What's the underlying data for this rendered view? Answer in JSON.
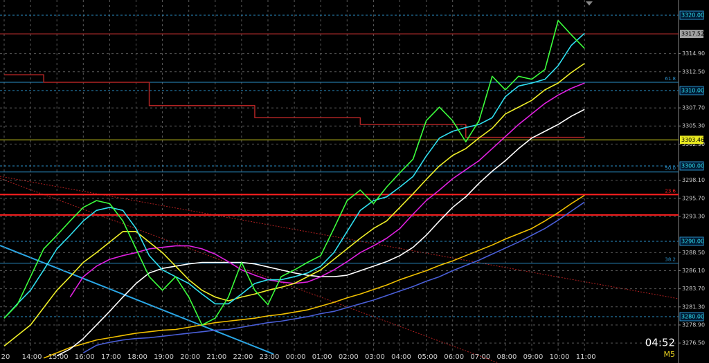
{
  "chart_data": {
    "type": "line",
    "categories": [
      "20",
      null,
      "14:00",
      null,
      "15:00",
      null,
      "16:00",
      null,
      "17:00",
      null,
      "18:00",
      null,
      "19:00",
      null,
      "20:00",
      null,
      "21:00",
      null,
      "22:00",
      null,
      "23:00",
      null,
      "00:00",
      null,
      "01:00",
      null,
      "02:00",
      null,
      "03:00",
      null,
      "04:00",
      null,
      "05:00",
      null,
      "06:00",
      null,
      "07:00",
      null,
      "08:00",
      null,
      "09:00",
      null,
      "10:00",
      null,
      "11:00"
    ],
    "ylim": [
      3273.85,
      3322.02
    ],
    "yticks": [
      {
        "value": 3314.9,
        "label": "3314.90"
      },
      {
        "value": 3312.5,
        "label": "3312.50"
      },
      {
        "value": 3307.7,
        "label": "3307.70"
      },
      {
        "value": 3305.3,
        "label": "3305.30"
      },
      {
        "value": 3302.9,
        "label": "3302.90"
      },
      {
        "value": 3298.1,
        "label": "3298.10"
      },
      {
        "value": 3295.7,
        "label": "3295.70"
      },
      {
        "value": 3293.3,
        "label": "3293.30"
      },
      {
        "value": 3288.5,
        "label": "3288.50"
      },
      {
        "value": 3286.1,
        "label": "3286.10"
      },
      {
        "value": 3283.7,
        "label": "3283.70"
      },
      {
        "value": 3281.3,
        "label": "3281.30"
      },
      {
        "value": 3278.9,
        "label": "3278.90"
      },
      {
        "value": 3276.5,
        "label": "3276.50"
      }
    ],
    "grid": true,
    "series": [
      {
        "color": "#b02424",
        "step": true,
        "values": [
          3312.1,
          3312.1,
          3312.1,
          3311.1,
          3311.1,
          3311.1,
          3311.1,
          3311.1,
          3311.1,
          3311.1,
          3311.1,
          3308.0,
          3308.0,
          3308.0,
          3308.0,
          3308.0,
          3308.0,
          3308.0,
          3308.0,
          3306.4,
          3306.4,
          3306.4,
          3306.4,
          3306.4,
          3306.4,
          3306.4,
          3306.4,
          3305.5,
          3305.5,
          3305.5,
          3305.5,
          3305.5,
          3305.5,
          3305.5,
          3305.5,
          3303.8,
          3303.8,
          3303.8,
          3303.8,
          3303.8,
          3303.8,
          3303.8,
          3303.8,
          3303.8,
          3303.8
        ]
      },
      {
        "color": "#f0c000",
        "values": [
          null,
          null,
          null,
          3274.5,
          3275.2,
          3275.9,
          3276.4,
          3276.9,
          3277.2,
          3277.5,
          3277.8,
          3278.0,
          3278.2,
          3278.3,
          3278.6,
          3278.9,
          3279.2,
          3279.4,
          3279.6,
          3279.8,
          3280.1,
          3280.3,
          3280.6,
          3280.9,
          3281.4,
          3281.9,
          3282.5,
          3283.0,
          3283.6,
          3284.2,
          3284.9,
          3285.5,
          3286.1,
          3286.8,
          3287.4,
          3288.1,
          3288.8,
          3289.5,
          3290.3,
          3291.0,
          3291.7,
          3292.7,
          3293.8,
          3295.0,
          3296.1
        ]
      },
      {
        "color": "#4a5fd8",
        "values": [
          null,
          null,
          null,
          null,
          null,
          null,
          3275.2,
          3276.2,
          3276.6,
          3276.9,
          3277.1,
          3277.2,
          3277.4,
          3277.6,
          3277.8,
          3278.0,
          3278.2,
          3278.3,
          3278.6,
          3278.9,
          3279.2,
          3279.4,
          3279.7,
          3280.0,
          3280.4,
          3280.7,
          3281.2,
          3281.7,
          3282.2,
          3282.8,
          3283.4,
          3284.0,
          3284.7,
          3285.3,
          3286.1,
          3286.8,
          3287.5,
          3288.3,
          3289.1,
          3289.9,
          3290.8,
          3291.7,
          3292.8,
          3294.0,
          3295.2
        ]
      },
      {
        "color": "#ffffff",
        "values": [
          null,
          null,
          null,
          null,
          3274.8,
          3275.7,
          3277.1,
          3278.9,
          3280.7,
          3282.6,
          3284.4,
          3285.8,
          3286.4,
          3286.7,
          3287.0,
          3287.2,
          3287.2,
          3287.2,
          3287.2,
          3287.0,
          3286.6,
          3286.2,
          3285.8,
          3285.5,
          3285.3,
          3285.3,
          3285.5,
          3286.1,
          3286.7,
          3287.3,
          3288.1,
          3289.2,
          3290.8,
          3292.7,
          3294.5,
          3295.9,
          3297.7,
          3299.3,
          3300.7,
          3302.3,
          3303.7,
          3304.6,
          3305.5,
          3306.6,
          3307.5
        ]
      },
      {
        "color": "#e020e0",
        "values": [
          null,
          null,
          null,
          null,
          null,
          3282.6,
          3285.3,
          3286.7,
          3287.6,
          3288.1,
          3288.5,
          3289.0,
          3289.2,
          3289.4,
          3289.4,
          3289.0,
          3288.3,
          3287.3,
          3286.2,
          3285.5,
          3284.9,
          3284.6,
          3284.4,
          3284.6,
          3285.3,
          3286.2,
          3287.3,
          3288.5,
          3289.4,
          3290.4,
          3291.7,
          3293.6,
          3295.4,
          3296.8,
          3298.3,
          3299.5,
          3300.7,
          3302.3,
          3303.9,
          3305.5,
          3306.9,
          3308.3,
          3309.4,
          3310.3,
          3311.0
        ]
      },
      {
        "color": "#f0f028",
        "values": [
          3276.1,
          3277.5,
          3278.9,
          3281.2,
          3283.5,
          3285.3,
          3287.2,
          3288.5,
          3289.9,
          3291.3,
          3291.3,
          3289.9,
          3288.5,
          3286.7,
          3284.9,
          3283.5,
          3282.6,
          3282.1,
          3282.6,
          3283.0,
          3283.5,
          3283.9,
          3284.4,
          3285.3,
          3286.2,
          3287.6,
          3289.0,
          3290.4,
          3291.7,
          3292.7,
          3294.5,
          3296.3,
          3298.2,
          3300.0,
          3301.4,
          3302.3,
          3303.7,
          3305.0,
          3306.9,
          3307.8,
          3308.7,
          3310.1,
          3311.0,
          3312.4,
          3313.6
        ]
      },
      {
        "color": "#30e0f0",
        "values": [
          3279.8,
          3281.7,
          3283.5,
          3286.2,
          3289.0,
          3290.8,
          3292.7,
          3294.1,
          3294.5,
          3294.1,
          3291.7,
          3288.1,
          3286.2,
          3285.3,
          3284.4,
          3283.0,
          3281.7,
          3281.7,
          3283.0,
          3284.4,
          3284.9,
          3284.9,
          3285.3,
          3285.8,
          3286.7,
          3288.5,
          3291.3,
          3294.1,
          3295.4,
          3295.9,
          3297.2,
          3298.6,
          3301.3,
          3303.7,
          3304.6,
          3305.1,
          3305.5,
          3306.4,
          3309.2,
          3310.6,
          3311.0,
          3311.5,
          3313.3,
          3316.0,
          3317.6
        ]
      },
      {
        "color": "#3cff3c",
        "values": [
          3279.8,
          3281.6,
          3285.3,
          3289.0,
          3290.8,
          3292.7,
          3294.5,
          3295.4,
          3295.0,
          3292.7,
          3289.0,
          3285.3,
          3283.5,
          3285.3,
          3282.6,
          3278.9,
          3279.8,
          3282.6,
          3287.2,
          3283.5,
          3281.6,
          3285.3,
          3286.2,
          3287.2,
          3288.1,
          3291.7,
          3295.4,
          3296.8,
          3295.0,
          3297.2,
          3299.1,
          3300.9,
          3306.0,
          3307.8,
          3306.0,
          3303.2,
          3306.0,
          3311.9,
          3310.1,
          3311.9,
          3311.5,
          3312.8,
          3319.3,
          3317.4,
          3315.6
        ]
      }
    ],
    "levels": [
      {
        "value": 3317.52,
        "color": "#c03030",
        "width": 1
      },
      {
        "value": 3311.1,
        "color": "#2a8fc8",
        "width": 1,
        "label": "61.8"
      },
      {
        "value": 3303.46,
        "color": "#d8d820",
        "width": 1
      },
      {
        "value": 3299.2,
        "color": "#2a8fc8",
        "width": 1,
        "label": "50.0"
      },
      {
        "value": 3296.2,
        "color": "#ff2020",
        "width": 2,
        "label": "23.6"
      },
      {
        "value": 3293.5,
        "color": "#ff2020",
        "width": 2
      },
      {
        "value": 3287.1,
        "color": "#2a8fc8",
        "width": 1,
        "label": "38.2"
      }
    ],
    "alert_levels": [
      {
        "value": 3320,
        "label": "3320.00",
        "color": "#2a8fc8",
        "text_color": "#30e0f0"
      },
      {
        "value": 3310,
        "label": "3310.00",
        "color": "#2a8fc8",
        "text_color": "#30e0f0"
      },
      {
        "value": 3300,
        "label": "3300.00",
        "color": "#2a8fc8",
        "text_color": "#30e0f0"
      },
      {
        "value": 3290,
        "label": "3290.00",
        "color": "#2a8fc8",
        "text_color": "#30e0f0"
      },
      {
        "value": 3280,
        "label": "3280.00",
        "color": "#2a8fc8",
        "text_color": "#30e0f0"
      }
    ],
    "price_markers": [
      {
        "value": 3317.52,
        "label": "3317.52",
        "color": "#a0a0a0",
        "text_color": "#000000"
      },
      {
        "value": 3303.46,
        "label": "3303.46",
        "color": "#e8e820",
        "text_color": "#000000"
      }
    ],
    "clock": "04:52",
    "timeframe": "M5"
  }
}
